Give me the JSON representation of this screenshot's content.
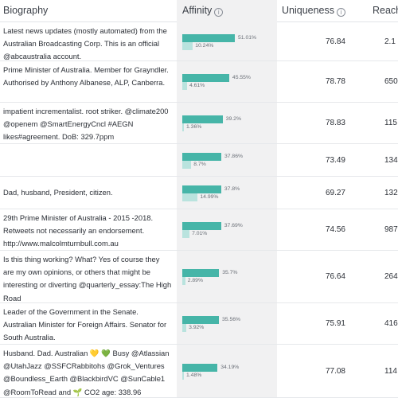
{
  "header": {
    "biography": "Biography",
    "affinity": "Affinity",
    "uniqueness": "Uniqueness",
    "reach": "Reach",
    "info_icon": "i"
  },
  "rows": [
    {
      "bio": "Latest news updates (mostly automated) from the Australian Broadcasting Corp. This is an official @abcaustralia account.",
      "aff_a": 51.01,
      "aff_a_label": "51.01%",
      "aff_b": 10.24,
      "aff_b_label": "10.24%",
      "uniqueness": "76.84",
      "reach": "2.1"
    },
    {
      "bio": "Prime Minister of Australia. Member for Grayndler. Authorised by Anthony Albanese, ALP, Canberra.",
      "aff_a": 45.55,
      "aff_a_label": "45.55%",
      "aff_b": 4.61,
      "aff_b_label": "4.61%",
      "uniqueness": "78.78",
      "reach": "650"
    },
    {
      "bio": "impatient incrementalist. root striker. @climate200 @openem @SmartEnergyCncl #AEGN likes#agreement. DoB: 329.7ppm",
      "aff_a": 39.2,
      "aff_a_label": "39.2%",
      "aff_b": 1.36,
      "aff_b_label": "1.36%",
      "uniqueness": "78.83",
      "reach": "115"
    },
    {
      "bio": "",
      "aff_a": 37.86,
      "aff_a_label": "37.86%",
      "aff_b": 8.7,
      "aff_b_label": "8.7%",
      "uniqueness": "73.49",
      "reach": "134.6"
    },
    {
      "bio": "Dad, husband, President, citizen.",
      "aff_a": 37.8,
      "aff_a_label": "37.8%",
      "aff_b": 14.99,
      "aff_b_label": "14.99%",
      "uniqueness": "69.27",
      "reach": "132.9"
    },
    {
      "bio": "29th Prime Minister of Australia - 2015 -2018. Retweets not necessarily an endorsement. http://www.malcolmturnbull.com.au",
      "aff_a": 37.69,
      "aff_a_label": "37.69%",
      "aff_b": 7.01,
      "aff_b_label": "7.01%",
      "uniqueness": "74.56",
      "reach": "987"
    },
    {
      "bio": "Is this thing working? What? Yes of course they are my own opinions, or others that might be interesting or diverting @quarterly_essay:The High Road",
      "aff_a": 35.7,
      "aff_a_label": "35.7%",
      "aff_b": 2.89,
      "aff_b_label": "2.89%",
      "uniqueness": "76.64",
      "reach": "264"
    },
    {
      "bio": "Leader of the Government in the Senate. Australian Minister for Foreign Affairs. Senator for South Australia.",
      "aff_a": 35.56,
      "aff_a_label": "35.56%",
      "aff_b": 3.92,
      "aff_b_label": "3.92%",
      "uniqueness": "75.91",
      "reach": "416"
    },
    {
      "bio": "Husband. Dad. Australian 💛 💚 Busy @Atlassian @UtahJazz @SSFCRabbitohs @Grok_Ventures @Boundless_Earth @BlackbirdVC @SunCable1 @RoomToRead and 🌱 CO2 age: 338.96",
      "aff_a": 34.19,
      "aff_a_label": "34.19%",
      "aff_b": 1.48,
      "aff_b_label": "1.48%",
      "uniqueness": "77.08",
      "reach": "114"
    }
  ],
  "colors": {
    "affinity_primary": "#46b5a8",
    "affinity_secondary": "#b9e3de",
    "affinity_column_bg": "#f1f1f2"
  }
}
